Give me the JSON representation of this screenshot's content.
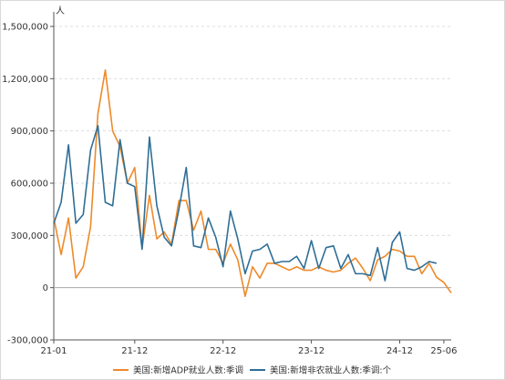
{
  "chart_data": {
    "type": "line",
    "y_unit": "人",
    "ylim": [
      -300000,
      1500000
    ],
    "yticks": [
      {
        "value": 1500000,
        "label": "1,500,000"
      },
      {
        "value": 1200000,
        "label": "1,200,000"
      },
      {
        "value": 900000,
        "label": "900,000"
      },
      {
        "value": 600000,
        "label": "600,000"
      },
      {
        "value": 300000,
        "label": "300,000"
      },
      {
        "value": 0,
        "label": "0"
      },
      {
        "value": -300000,
        "label": "-300,000"
      }
    ],
    "xticks": [
      {
        "index": 0,
        "label": "21-01"
      },
      {
        "index": 11,
        "label": "21-12"
      },
      {
        "index": 23,
        "label": "22-12"
      },
      {
        "index": 35,
        "label": "23-12"
      },
      {
        "index": 47,
        "label": "24-12"
      },
      {
        "index": 53,
        "label": "25-06"
      }
    ],
    "grid": "horizontal-dashed",
    "legend_position": "bottom",
    "series": [
      {
        "name": "美国:新增ADP就业人数:季调",
        "color": "#ee8a2a",
        "values": [
          400000,
          190000,
          400000,
          55000,
          120000,
          350000,
          1000000,
          1250000,
          900000,
          810000,
          600000,
          690000,
          230000,
          530000,
          280000,
          320000,
          250000,
          500000,
          500000,
          330000,
          440000,
          220000,
          220000,
          140000,
          250000,
          160000,
          -50000,
          120000,
          55000,
          140000,
          140000,
          120000,
          100000,
          120000,
          100000,
          100000,
          120000,
          100000,
          90000,
          100000,
          140000,
          170000,
          110000,
          40000,
          160000,
          180000,
          220000,
          210000,
          180000,
          180000,
          80000,
          140000,
          60000,
          30000,
          -30000
        ]
      },
      {
        "name": "美国:新增非农就业人数:季调:个",
        "color": "#2f6e96",
        "values": [
          370000,
          490000,
          820000,
          370000,
          420000,
          790000,
          930000,
          490000,
          470000,
          850000,
          600000,
          580000,
          220000,
          865000,
          470000,
          290000,
          240000,
          450000,
          690000,
          240000,
          230000,
          400000,
          290000,
          120000,
          440000,
          280000,
          80000,
          210000,
          220000,
          250000,
          140000,
          150000,
          150000,
          180000,
          110000,
          270000,
          110000,
          230000,
          240000,
          110000,
          190000,
          80000,
          80000,
          70000,
          230000,
          40000,
          260000,
          320000,
          110000,
          100000,
          120000,
          150000,
          140000,
          null,
          null
        ]
      }
    ]
  }
}
